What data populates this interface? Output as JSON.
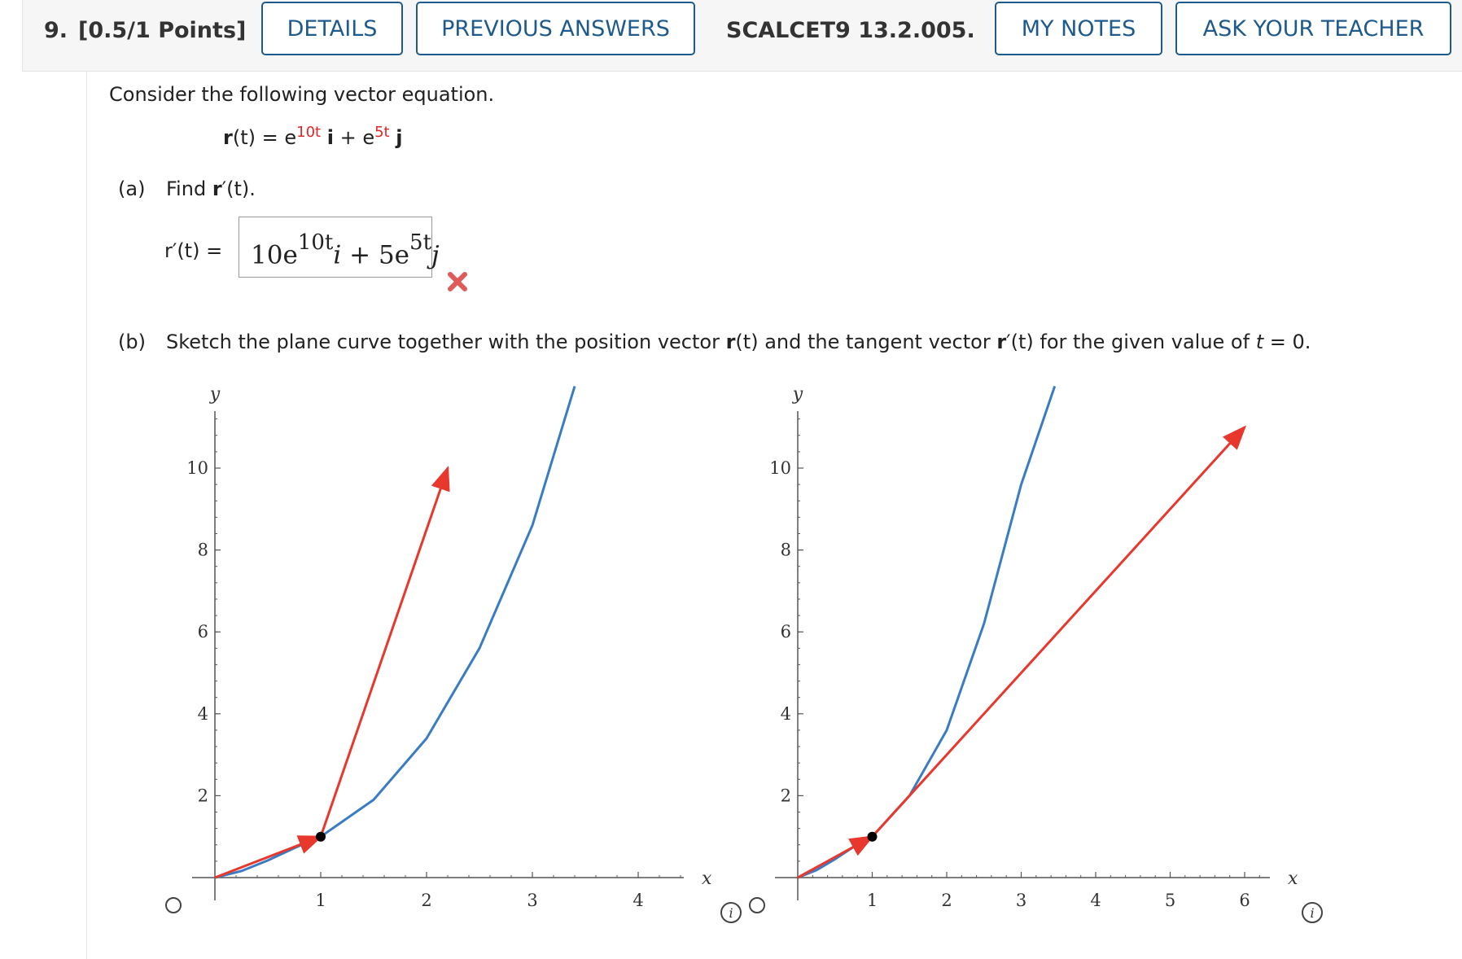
{
  "header": {
    "question_number": "9.",
    "points": "[0.5/1 Points]",
    "details_label": "DETAILS",
    "previous_answers_label": "PREVIOUS ANSWERS",
    "problem_id": "SCALCET9 13.2.005.",
    "my_notes_label": "MY NOTES",
    "ask_teacher_label": "ASK YOUR TEACHER"
  },
  "question": {
    "intro": "Consider the following vector equation.",
    "equation": {
      "lhs_bold": "r",
      "lhs_arg": "(t) = e",
      "exp1": "10t",
      "i": "i",
      "plus": " + e",
      "exp2": "5t",
      "j": "j"
    },
    "part_a": {
      "label": "(a)",
      "prompt_pre": "Find ",
      "prompt_bold": "r",
      "prompt_post": "′(t).",
      "answer_label": "r′(t) =",
      "answer": {
        "c1": "10e",
        "e1": "10t",
        "v1": "i",
        "plus": " + 5e",
        "e2": "5t",
        "v2": "j"
      },
      "status_icon": "incorrect-x-icon"
    },
    "part_b": {
      "label": "(b)",
      "prompt": "Sketch the plane curve together with the position vector r(t) and the tangent vector r′(t) for the given value of t = 0.",
      "prompt_parts": [
        "Sketch the plane curve together with the position vector ",
        "r",
        "(t) and the tangent vector ",
        "r",
        "′(t) for the given value of ",
        "t",
        " = 0."
      ]
    }
  },
  "colors": {
    "curve": "#3a7cc3",
    "vector": "#e8372c",
    "point": "#000000",
    "link": "#1e5b8c"
  },
  "chart_data": [
    {
      "type": "line",
      "xlabel": "x",
      "ylabel": "y",
      "xlim": [
        0,
        4.5
      ],
      "ylim": [
        0,
        12
      ],
      "x_ticks": [
        1,
        2,
        3,
        4
      ],
      "y_ticks": [
        2,
        4,
        6,
        8,
        10
      ],
      "series": [
        {
          "kind": "curve",
          "x": [
            0.0,
            0.25,
            0.5,
            0.75,
            1.0,
            1.5,
            2.0,
            2.5,
            3.0,
            3.4
          ],
          "y": [
            0.0,
            0.16,
            0.42,
            0.72,
            1.0,
            1.9,
            3.4,
            5.6,
            8.6,
            12.0
          ]
        },
        {
          "kind": "vector",
          "x": [
            0,
            1
          ],
          "y": [
            0,
            1
          ]
        },
        {
          "kind": "vector",
          "x": [
            1,
            2.2
          ],
          "y": [
            1,
            10
          ]
        }
      ],
      "point": {
        "x": 1,
        "y": 1
      }
    },
    {
      "type": "line",
      "xlabel": "x",
      "ylabel": "y",
      "xlim": [
        0,
        6.3
      ],
      "ylim": [
        0,
        12
      ],
      "x_ticks": [
        1,
        2,
        3,
        4,
        5,
        6
      ],
      "y_ticks": [
        2,
        4,
        6,
        8,
        10
      ],
      "series": [
        {
          "kind": "curve",
          "x": [
            0.0,
            0.25,
            0.5,
            0.75,
            1.0,
            1.5,
            2.0,
            2.5,
            3.0,
            3.45
          ],
          "y": [
            0.0,
            0.18,
            0.45,
            0.75,
            1.0,
            2.0,
            3.6,
            6.2,
            9.6,
            12.0
          ]
        },
        {
          "kind": "vector",
          "x": [
            0,
            1
          ],
          "y": [
            0,
            1
          ]
        },
        {
          "kind": "vector",
          "x": [
            1,
            6
          ],
          "y": [
            1,
            11
          ]
        }
      ],
      "point": {
        "x": 1,
        "y": 1
      }
    }
  ]
}
